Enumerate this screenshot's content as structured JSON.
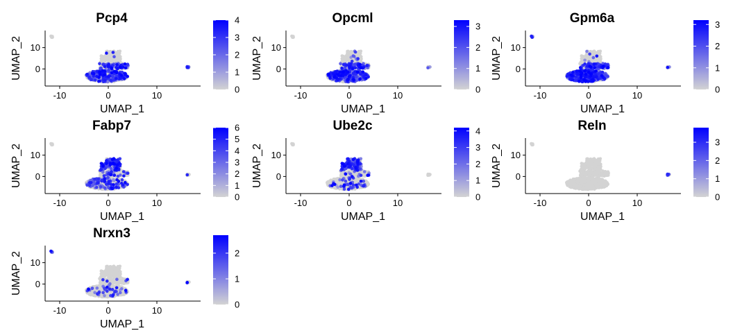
{
  "chart_data": [
    {
      "type": "scatter",
      "title": "Pcp4",
      "xlabel": "UMAP_1",
      "ylabel": "UMAP_2",
      "xlim": [
        -13,
        19
      ],
      "ylim": [
        -8,
        18
      ],
      "x_ticks": [
        -10,
        0,
        10
      ],
      "y_ticks": [
        0,
        10
      ],
      "colorbar": {
        "min": 0,
        "max": 4,
        "ticks": [
          0,
          1,
          2,
          3,
          4
        ],
        "low_color": "#d3d3d3",
        "high_color": "#0000ff"
      },
      "expression_pattern": {
        "body": 0.38,
        "island": 0.05,
        "outlier": 0.75
      }
    },
    {
      "type": "scatter",
      "title": "Opcml",
      "xlabel": "UMAP_1",
      "ylabel": "UMAP_2",
      "xlim": [
        -13,
        19
      ],
      "ylim": [
        -8,
        18
      ],
      "x_ticks": [
        -10,
        0,
        10
      ],
      "y_ticks": [
        0,
        10
      ],
      "colorbar": {
        "min": 0,
        "max": 3.3,
        "ticks": [
          0,
          1,
          2,
          3
        ],
        "low_color": "#d3d3d3",
        "high_color": "#0000ff"
      },
      "expression_pattern": {
        "body": 0.45,
        "island": 0.05,
        "outlier": 0.1
      }
    },
    {
      "type": "scatter",
      "title": "Gpm6a",
      "xlabel": "UMAP_1",
      "ylabel": "UMAP_2",
      "xlim": [
        -13,
        19
      ],
      "ylim": [
        -8,
        18
      ],
      "x_ticks": [
        -10,
        0,
        10
      ],
      "y_ticks": [
        0,
        10
      ],
      "colorbar": {
        "min": 0,
        "max": 3.2,
        "ticks": [
          0,
          1,
          2,
          3
        ],
        "low_color": "#d3d3d3",
        "high_color": "#0000ff"
      },
      "expression_pattern": {
        "body": 0.62,
        "island": 0.05,
        "outlier": 0.55,
        "left": 0.65
      }
    },
    {
      "type": "scatter",
      "title": "Fabp7",
      "xlabel": "UMAP_1",
      "ylabel": "UMAP_2",
      "xlim": [
        -13,
        19
      ],
      "ylim": [
        -8,
        18
      ],
      "x_ticks": [
        -10,
        0,
        10
      ],
      "y_ticks": [
        0,
        10
      ],
      "colorbar": {
        "min": 0,
        "max": 6,
        "ticks": [
          0,
          1,
          2,
          3,
          4,
          5,
          6
        ],
        "low_color": "#d3d3d3",
        "high_color": "#0000ff"
      },
      "expression_pattern": {
        "body": 0.2,
        "island": 0.75,
        "outlier": 0.1
      }
    },
    {
      "type": "scatter",
      "title": "Ube2c",
      "xlabel": "UMAP_1",
      "ylabel": "UMAP_2",
      "xlim": [
        -13,
        19
      ],
      "ylim": [
        -8,
        18
      ],
      "x_ticks": [
        -10,
        0,
        10
      ],
      "y_ticks": [
        0,
        10
      ],
      "colorbar": {
        "min": 0,
        "max": 4.2,
        "ticks": [
          0,
          1,
          2,
          3,
          4
        ],
        "low_color": "#d3d3d3",
        "high_color": "#0000ff"
      },
      "expression_pattern": {
        "body": 0.08,
        "island": 0.75,
        "outlier": 0.2
      }
    },
    {
      "type": "scatter",
      "title": "Reln",
      "xlabel": "UMAP_1",
      "ylabel": "UMAP_2",
      "xlim": [
        -13,
        19
      ],
      "ylim": [
        -8,
        18
      ],
      "x_ticks": [
        -10,
        0,
        10
      ],
      "y_ticks": [
        0,
        10
      ],
      "colorbar": {
        "min": 0,
        "max": 3.8,
        "ticks": [
          0,
          1,
          2,
          3
        ],
        "low_color": "#d3d3d3",
        "high_color": "#0000ff"
      },
      "expression_pattern": {
        "body": 0.0,
        "island": 0.0,
        "outlier": 0.8
      }
    },
    {
      "type": "scatter",
      "title": "Nrxn3",
      "xlabel": "UMAP_1",
      "ylabel": "UMAP_2",
      "xlim": [
        -13,
        19
      ],
      "ylim": [
        -8,
        18
      ],
      "x_ticks": [
        -10,
        0,
        10
      ],
      "y_ticks": [
        0,
        10
      ],
      "colorbar": {
        "min": 0,
        "max": 2.7,
        "ticks": [
          0,
          1,
          2
        ],
        "low_color": "#d3d3d3",
        "high_color": "#0000ff"
      },
      "expression_pattern": {
        "body": 0.06,
        "island": 0.0,
        "outlier": 0.25,
        "left": 0.95
      }
    }
  ]
}
